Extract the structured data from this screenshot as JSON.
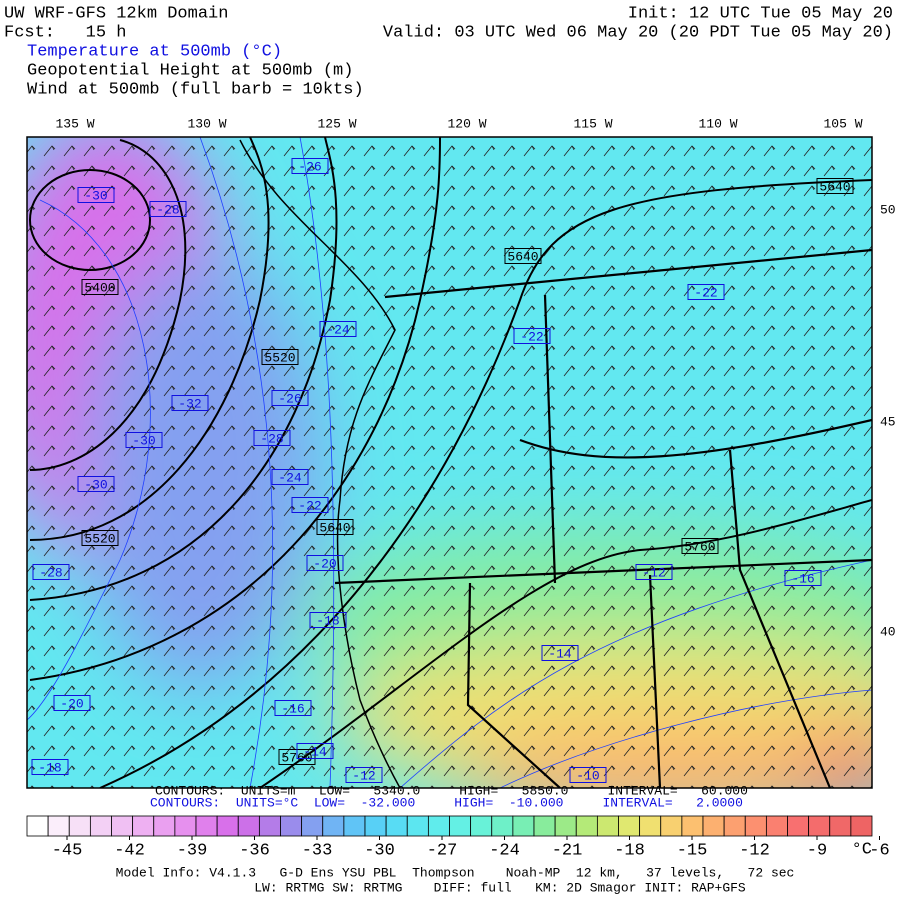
{
  "header": {
    "title": "UW WRF-GFS 12km Domain",
    "init": "Init: 12 UTC Tue 05 May 20",
    "forecast": "Fcst:   15 h",
    "valid": "Valid: 03 UTC Wed 06 May 20 (20 PDT Tue 05 May 20)",
    "fields": [
      "Temperature at 500mb (°C)",
      "Geopotential Height at 500mb (m)",
      "Wind at 500mb (full barb = 10kts)"
    ]
  },
  "map": {
    "longitude_labels": [
      "135 W",
      "130 W",
      "125 W",
      "120 W",
      "115 W",
      "110 W",
      "105 W"
    ],
    "latitude_labels": [
      "50",
      "45",
      "40"
    ],
    "contour_labels": {
      "height": [
        "5400",
        "5520",
        "5520",
        "5640",
        "5640",
        "5760",
        "5760",
        "5640"
      ],
      "temperature": [
        "-30",
        "-28",
        "-26",
        "-24",
        "-22",
        "-22",
        "-26",
        "-32",
        "-30",
        "-28",
        "-30",
        "-24",
        "-22",
        "-20",
        "-28",
        "-18",
        "-12",
        "-16",
        "-14",
        "-20",
        "-16",
        "-14",
        "-18",
        "-12",
        "-10"
      ]
    }
  },
  "contour_info": {
    "height": "CONTOURS:  UNITS=m   LOW=   5340.0     HIGH=   5850.0     INTERVAL=   60.000",
    "temperature": "CONTOURS:  UNITS=°C  LOW=  -32.000     HIGH=  -10.000     INTERVAL=   2.0000"
  },
  "colorbar": {
    "ticks": [
      "-45",
      "-42",
      "-39",
      "-36",
      "-33",
      "-30",
      "-27",
      "-24",
      "-21",
      "-18",
      "-15",
      "-12",
      "-9",
      "-6"
    ],
    "unit": "°C",
    "colors": [
      "#ffffff",
      "#fbeefb",
      "#f7e0f7",
      "#f3d0f5",
      "#f0c0f3",
      "#eeb0f2",
      "#eaa0f0",
      "#e690ee",
      "#e080ec",
      "#d870ea",
      "#cc70e8",
      "#b47ce8",
      "#9a8cec",
      "#84a0f0",
      "#70b4f4",
      "#60c4f6",
      "#58d0f6",
      "#58dcf4",
      "#5ce6f0",
      "#60ecec",
      "#64f0e4",
      "#68f2d8",
      "#6ef0c8",
      "#78eeb4",
      "#88ec9c",
      "#9cea88",
      "#b4ea78",
      "#cce870",
      "#e0e870",
      "#f0e070",
      "#f8d070",
      "#fcc070",
      "#fcb070",
      "#fca070",
      "#fc9070",
      "#fa8070",
      "#f87070",
      "#f46c6c",
      "#f06868",
      "#ee6464"
    ]
  },
  "footer": [
    "Model Info: V4.1.3   G-D Ens YSU PBL  Thompson    Noah-MP  12 km,   37 levels,   72 sec",
    "LW: RRTMG SW: RRTMG    DIFF: full   KM: 2D Smagor INIT: RAP+GFS"
  ]
}
